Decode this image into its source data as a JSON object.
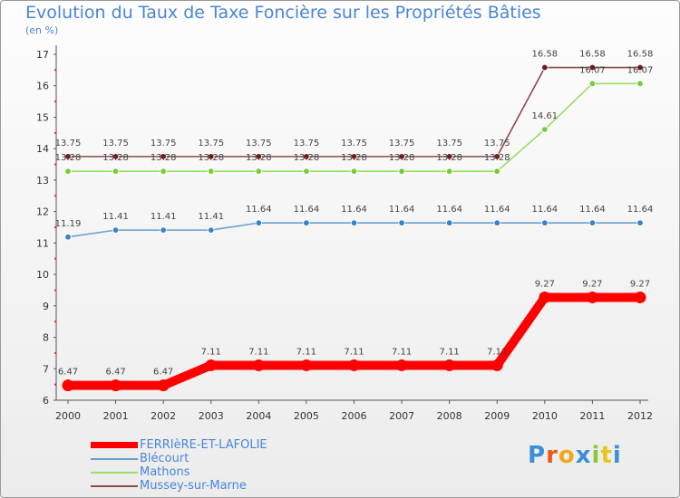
{
  "title": "Evolution du Taux de Taxe Foncière sur les Propriétés Bâties",
  "unit": "(en %)",
  "logo": "Proxiti",
  "chart_data": {
    "type": "line",
    "title": "Evolution du Taux de Taxe Foncière sur les Propriétés Bâties",
    "ylabel": "(en %)",
    "xlabel": "",
    "ylim": [
      6,
      17
    ],
    "yticks": [
      6,
      7,
      8,
      9,
      10,
      11,
      12,
      13,
      14,
      15,
      16,
      17
    ],
    "x": [
      "2000",
      "2001",
      "2002",
      "2003",
      "2004",
      "2005",
      "2006",
      "2007",
      "2008",
      "2009",
      "2010",
      "2011",
      "2012"
    ],
    "legend_position": "bottom",
    "series": [
      {
        "name": "FERRIèRE-ET-LAFOLIE",
        "color": "#ff0000",
        "marker": "#ff0000",
        "values": [
          6.47,
          6.47,
          6.47,
          7.11,
          7.11,
          7.11,
          7.11,
          7.11,
          7.11,
          7.11,
          9.27,
          9.27,
          9.27
        ]
      },
      {
        "name": "Blécourt",
        "color": "#6a9fcf",
        "marker": "#3a82c6",
        "values": [
          11.19,
          11.41,
          11.41,
          11.41,
          11.64,
          11.64,
          11.64,
          11.64,
          11.64,
          11.64,
          11.64,
          11.64,
          11.64
        ]
      },
      {
        "name": "Mathons",
        "color": "#99dd66",
        "marker": "#77cc33",
        "values": [
          13.28,
          13.28,
          13.28,
          13.28,
          13.28,
          13.28,
          13.28,
          13.28,
          13.28,
          13.28,
          14.61,
          16.07,
          16.07
        ]
      },
      {
        "name": "Mussey-sur-Marne",
        "color": "#8b4a4a",
        "marker": "#6e1c1c",
        "values": [
          13.75,
          13.75,
          13.75,
          13.75,
          13.75,
          13.75,
          13.75,
          13.75,
          13.75,
          13.75,
          16.58,
          16.58,
          16.58
        ]
      }
    ]
  }
}
